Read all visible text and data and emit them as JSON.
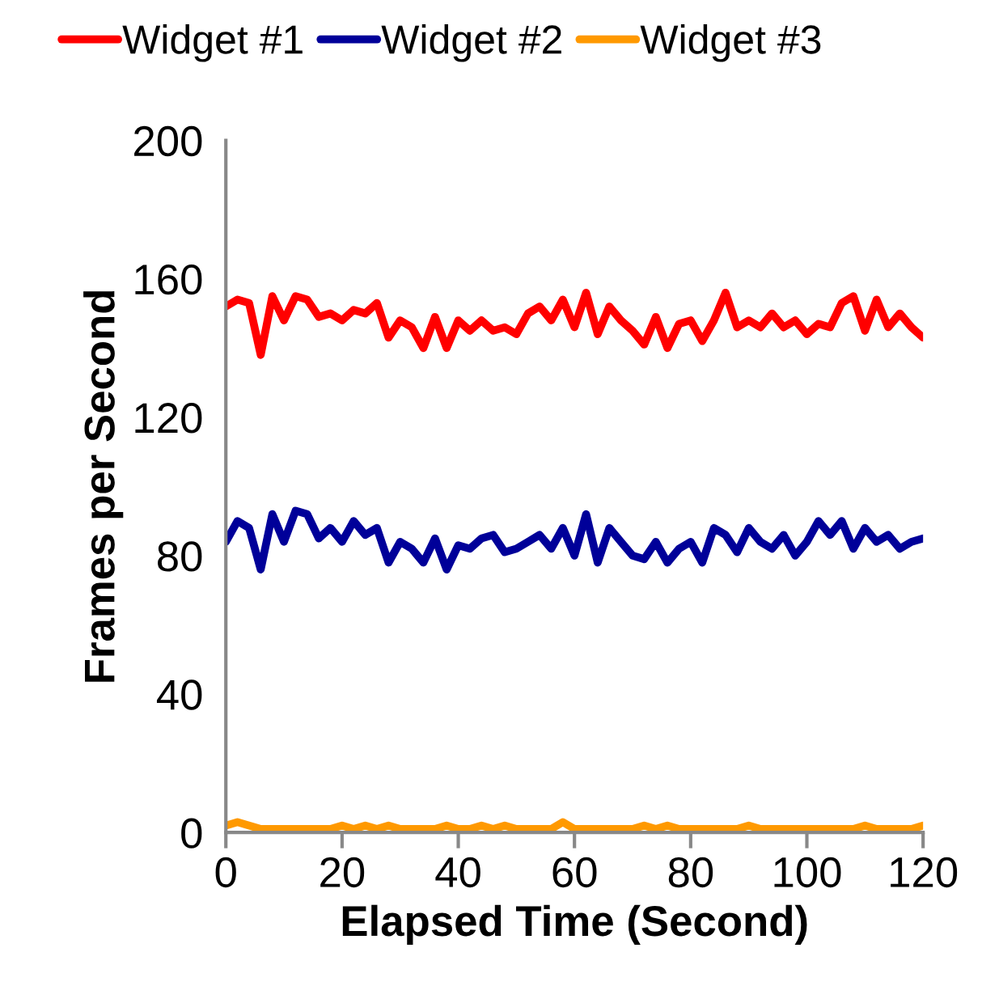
{
  "chart_data": {
    "type": "line",
    "xlabel": "Elapsed Time (Second)",
    "ylabel": "Frames per Second",
    "x": [
      0,
      2,
      4,
      6,
      8,
      10,
      12,
      14,
      16,
      18,
      20,
      22,
      24,
      26,
      28,
      30,
      32,
      34,
      36,
      38,
      40,
      42,
      44,
      46,
      48,
      50,
      52,
      54,
      56,
      58,
      60,
      62,
      64,
      66,
      68,
      70,
      72,
      74,
      76,
      78,
      80,
      82,
      84,
      86,
      88,
      90,
      92,
      94,
      96,
      98,
      100,
      102,
      104,
      106,
      108,
      110,
      112,
      114,
      116,
      118,
      120
    ],
    "xlim": [
      0,
      120
    ],
    "xticks": [
      0,
      20,
      40,
      60,
      80,
      100,
      120
    ],
    "ylim": [
      0,
      200
    ],
    "yticks": [
      0,
      40,
      80,
      120,
      160,
      200
    ],
    "grid": false,
    "legend": "top",
    "marker": "none",
    "line_style": "solid",
    "series": [
      {
        "name": "Widget #1",
        "color": "#ff0000",
        "values": [
          152,
          154,
          153,
          138,
          155,
          148,
          155,
          154,
          149,
          150,
          148,
          151,
          150,
          153,
          143,
          148,
          146,
          140,
          149,
          140,
          148,
          145,
          148,
          145,
          146,
          144,
          150,
          152,
          148,
          154,
          146,
          156,
          144,
          152,
          148,
          145,
          141,
          149,
          140,
          147,
          148,
          142,
          148,
          156,
          146,
          148,
          146,
          150,
          146,
          148,
          144,
          147,
          146,
          153,
          155,
          145,
          154,
          146,
          150,
          146,
          143
        ]
      },
      {
        "name": "Widget #2",
        "color": "#000099",
        "values": [
          84,
          90,
          88,
          76,
          92,
          84,
          93,
          92,
          85,
          88,
          84,
          90,
          86,
          88,
          78,
          84,
          82,
          78,
          85,
          76,
          83,
          82,
          85,
          86,
          81,
          82,
          84,
          86,
          82,
          88,
          80,
          92,
          78,
          88,
          84,
          80,
          79,
          84,
          78,
          82,
          84,
          78,
          88,
          86,
          81,
          88,
          84,
          82,
          86,
          80,
          84,
          90,
          86,
          90,
          82,
          88,
          84,
          86,
          82,
          84,
          85
        ]
      },
      {
        "name": "Widget #3",
        "color": "#ff9900",
        "values": [
          2,
          3,
          2,
          1,
          1,
          1,
          1,
          1,
          1,
          1,
          2,
          1,
          2,
          1,
          2,
          1,
          1,
          1,
          1,
          2,
          1,
          1,
          2,
          1,
          2,
          1,
          1,
          1,
          1,
          3,
          1,
          1,
          1,
          1,
          1,
          1,
          2,
          1,
          2,
          1,
          1,
          1,
          1,
          1,
          1,
          2,
          1,
          1,
          1,
          1,
          1,
          1,
          1,
          1,
          1,
          2,
          1,
          1,
          1,
          1,
          2
        ]
      }
    ]
  }
}
